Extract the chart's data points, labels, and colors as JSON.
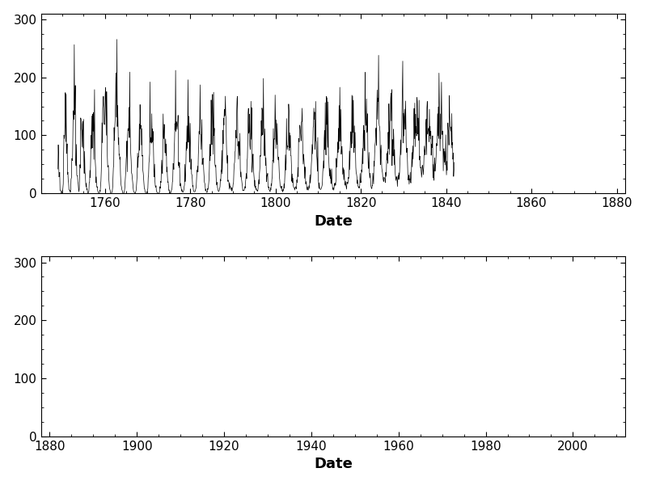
{
  "xlabel": "Date",
  "xlim1": [
    1745,
    1882
  ],
  "xlim2": [
    1878,
    2012
  ],
  "ylim": [
    0,
    310
  ],
  "yticks": [
    0,
    100,
    200,
    300
  ],
  "xticks1": [
    1760,
    1780,
    1800,
    1820,
    1840,
    1860,
    1880
  ],
  "xticks2": [
    1880,
    1900,
    1920,
    1940,
    1960,
    1980,
    2000
  ],
  "line_color": "#000000",
  "line_width": 0.5,
  "bg_color": "#ffffff",
  "xlabel_fontsize": 13,
  "tick_fontsize": 11,
  "start_year": 1749,
  "start_month": 1
}
